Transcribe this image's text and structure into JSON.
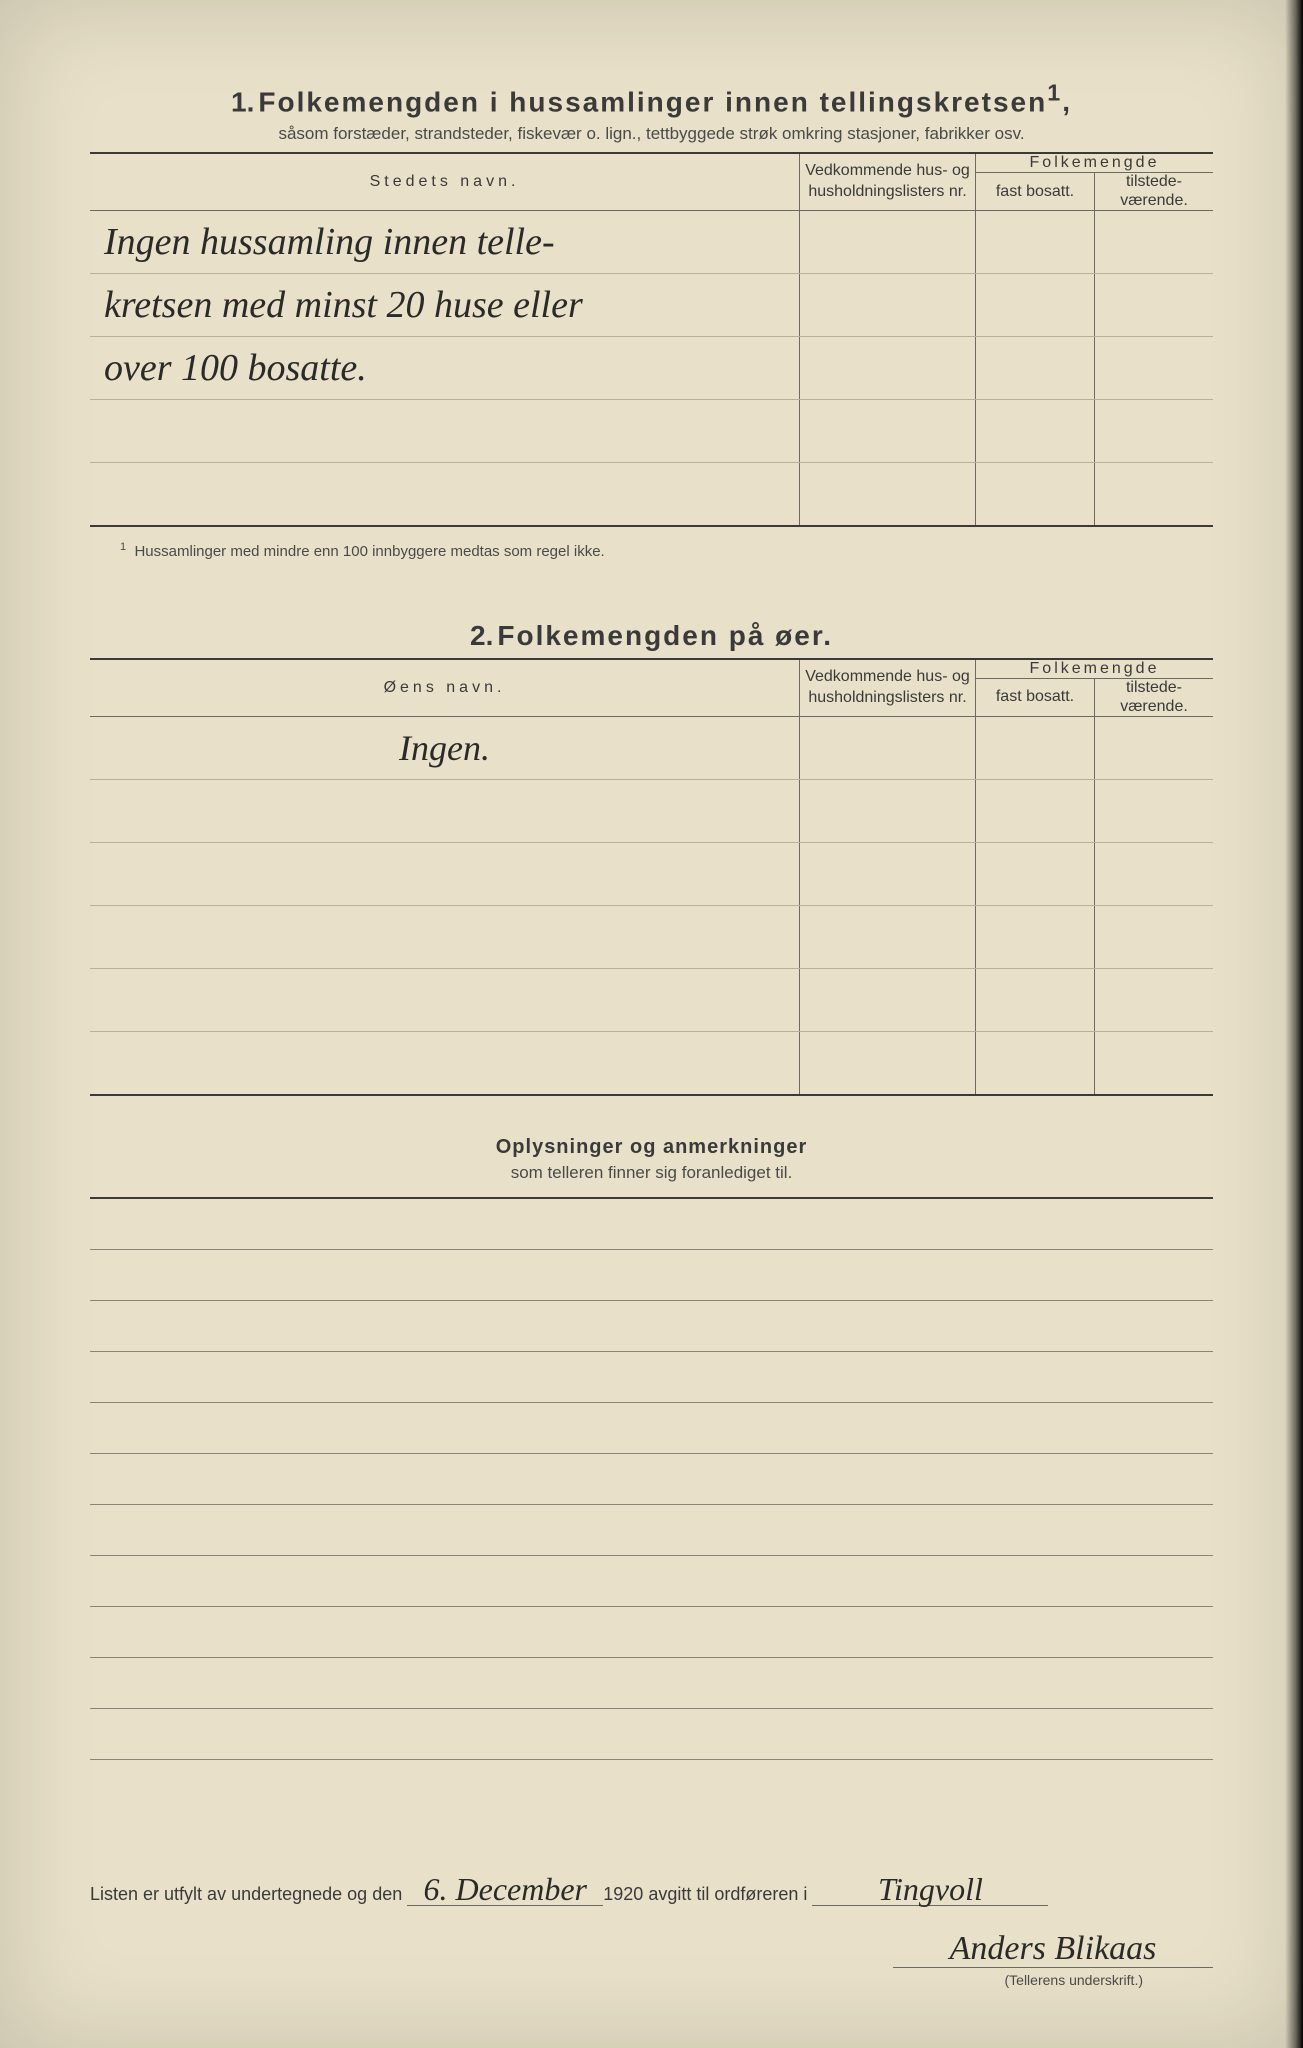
{
  "section1": {
    "number": "1.",
    "title": "Folkemengden i hussamlinger innen tellingskretsen",
    "title_sup": "1",
    "subtitle": "såsom forstæder, strandsteder, fiskevær o. lign., tettbyggede strøk omkring stasjoner, fabrikker osv.",
    "headers": {
      "name": "Stedets navn.",
      "nr": "Vedkommende hus- og husholdningslisters nr.",
      "folkemengde": "Folkemengde",
      "fast": "fast bosatt.",
      "tilstede": "tilstede-værende."
    },
    "rows": [
      "Ingen hussamling innen telle-",
      "kretsen med minst 20 huse eller",
      "over 100 bosatte.",
      "",
      ""
    ],
    "footnote_sup": "1",
    "footnote": "Hussamlinger med mindre enn 100 innbyggere medtas som regel ikke."
  },
  "section2": {
    "number": "2.",
    "title": "Folkemengden på øer.",
    "headers": {
      "name": "Øens navn.",
      "nr": "Vedkommende hus- og husholdningslisters nr.",
      "folkemengde": "Folkemengde",
      "fast": "fast bosatt.",
      "tilstede": "tilstede-værende."
    },
    "rows": [
      "Ingen.",
      "",
      "",
      "",
      "",
      ""
    ]
  },
  "section3": {
    "title": "Oplysninger og anmerkninger",
    "subtitle": "som telleren finner sig foranlediget til.",
    "line_count": 11
  },
  "footer": {
    "prefix": "Listen er utfylt av undertegnede og den",
    "date": "6. December",
    "year": "1920",
    "mid": "avgitt til ordføreren i",
    "place": "Tingvoll",
    "signature": "Anders Blikaas",
    "sig_caption": "(Tellerens underskrift.)"
  },
  "colors": {
    "paper": "#e8e0c8",
    "ink": "#3a3a3a",
    "rule_heavy": "#3a3a38",
    "rule_light": "#8a8578",
    "handwriting": "#2a2a28"
  }
}
